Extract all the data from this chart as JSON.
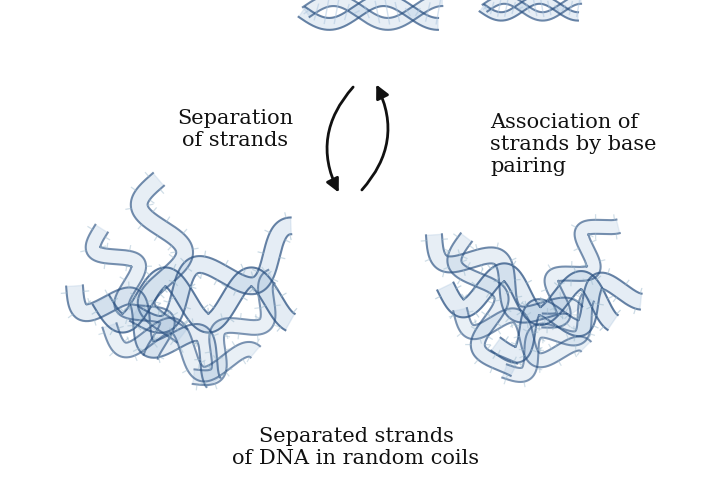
{
  "background_color": "#ffffff",
  "text_separation_strands": "Separation\nof strands",
  "text_association": "Association of\nstrands by base\npairing",
  "text_bottom": "Separated strands\nof DNA in random coils",
  "text_color": "#111111",
  "arrow_color": "#111111",
  "dna_dark_blue": "#2a5080",
  "dna_mid_blue": "#4a7aaa",
  "dna_light_blue": "#aac4de",
  "dna_very_light": "#d0e4f0",
  "fig_width": 7.11,
  "fig_height": 5.0,
  "dpi": 100
}
